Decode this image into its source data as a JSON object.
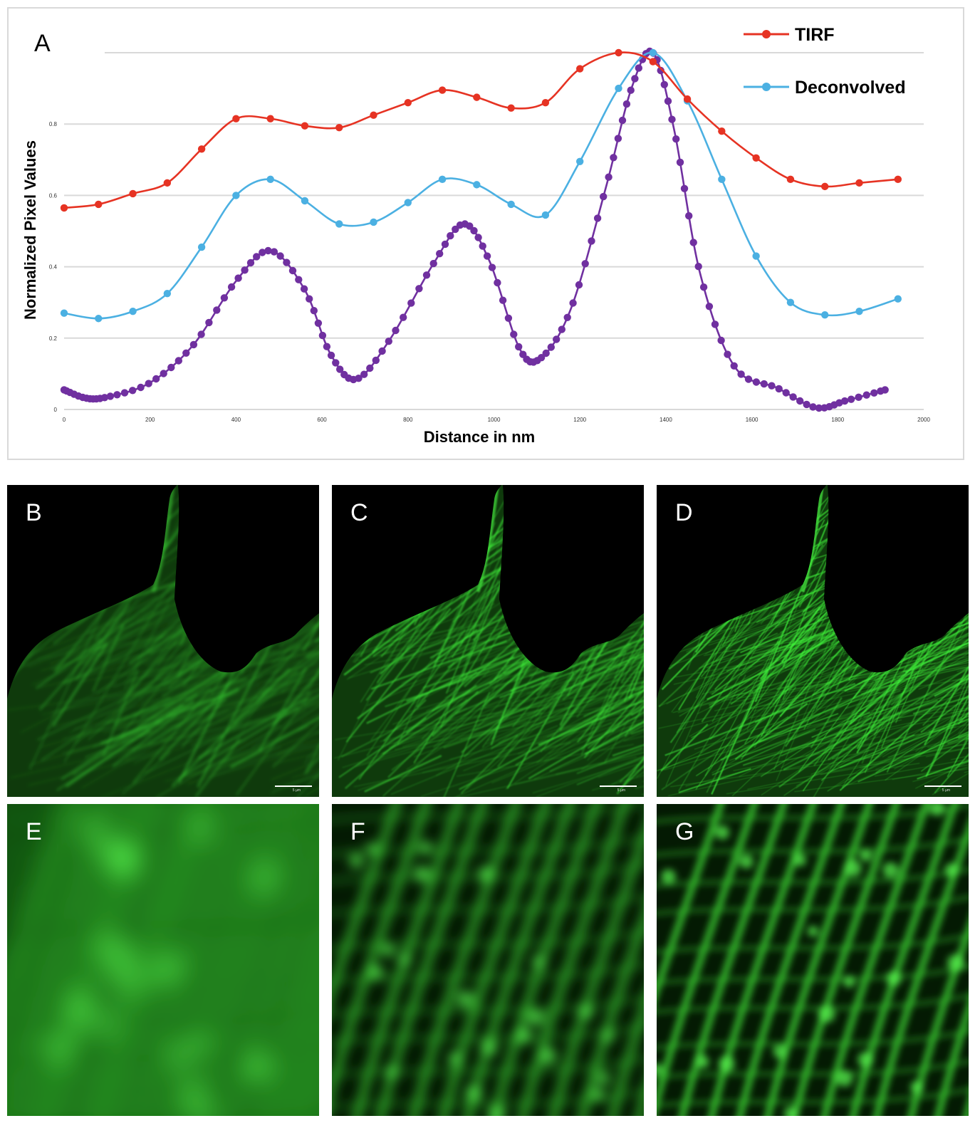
{
  "figure": {
    "panel_a_letter": "A",
    "panels": [
      {
        "id": "B",
        "label": "B",
        "kind": "overview-tirf",
        "scale_text": "5 µm"
      },
      {
        "id": "C",
        "label": "C",
        "kind": "overview-deconvolved",
        "scale_text": "5 µm"
      },
      {
        "id": "D",
        "label": "D",
        "kind": "overview-super",
        "scale_text": "5 µm"
      },
      {
        "id": "E",
        "label": "E",
        "kind": "zoom-tirf"
      },
      {
        "id": "F",
        "label": "F",
        "kind": "zoom-deconvolved"
      },
      {
        "id": "G",
        "label": "G",
        "kind": "zoom-super"
      }
    ]
  },
  "chart_data": {
    "type": "line",
    "title": "",
    "xlabel": "Distance in nm",
    "ylabel": "Normalized Pixel Values",
    "xlim": [
      0,
      2000
    ],
    "ylim": [
      0,
      1.0
    ],
    "xticks": [
      "0",
      "200",
      "400",
      "600",
      "800",
      "1000",
      "1200",
      "1400",
      "1600",
      "1800",
      "2000"
    ],
    "yticks": [
      "0",
      "0.2",
      "0.4",
      "0.6",
      "0.8"
    ],
    "grid": true,
    "legend_position": "top-right",
    "series": [
      {
        "name": "TIRF",
        "color": "#e63323",
        "x": [
          0,
          80,
          160,
          240,
          320,
          400,
          480,
          560,
          640,
          720,
          800,
          880,
          960,
          1040,
          1120,
          1200,
          1290,
          1370,
          1450,
          1530,
          1610,
          1690,
          1770,
          1850,
          1940
        ],
        "y": [
          0.565,
          0.575,
          0.605,
          0.635,
          0.73,
          0.815,
          0.815,
          0.795,
          0.79,
          0.825,
          0.86,
          0.895,
          0.875,
          0.845,
          0.86,
          0.955,
          1.0,
          0.975,
          0.87,
          0.78,
          0.705,
          0.645,
          0.625,
          0.635,
          0.645
        ]
      },
      {
        "name": "Deconvolved",
        "color": "#4bb0e2",
        "x": [
          0,
          80,
          160,
          240,
          320,
          400,
          480,
          560,
          640,
          720,
          800,
          880,
          960,
          1040,
          1120,
          1200,
          1290,
          1370,
          1450,
          1530,
          1610,
          1690,
          1770,
          1850,
          1940
        ],
        "y": [
          0.27,
          0.255,
          0.275,
          0.325,
          0.455,
          0.6,
          0.645,
          0.585,
          0.52,
          0.525,
          0.58,
          0.645,
          0.63,
          0.575,
          0.545,
          0.695,
          0.9,
          1.0,
          0.865,
          0.645,
          0.43,
          0.3,
          0.265,
          0.275,
          0.31
        ]
      },
      {
        "name": "",
        "color": "#7030a0",
        "x": [
          0,
          50,
          100,
          200,
          300,
          400,
          480,
          560,
          620,
          680,
          760,
          860,
          930,
          990,
          1060,
          1110,
          1180,
          1260,
          1320,
          1370,
          1420,
          1480,
          1560,
          1660,
          1750,
          1820,
          1910
        ],
        "y": [
          0.055,
          0.032,
          0.035,
          0.075,
          0.18,
          0.36,
          0.445,
          0.335,
          0.155,
          0.085,
          0.2,
          0.41,
          0.52,
          0.415,
          0.17,
          0.145,
          0.285,
          0.62,
          0.9,
          1.0,
          0.78,
          0.38,
          0.12,
          0.06,
          0.005,
          0.025,
          0.055
        ]
      }
    ]
  }
}
